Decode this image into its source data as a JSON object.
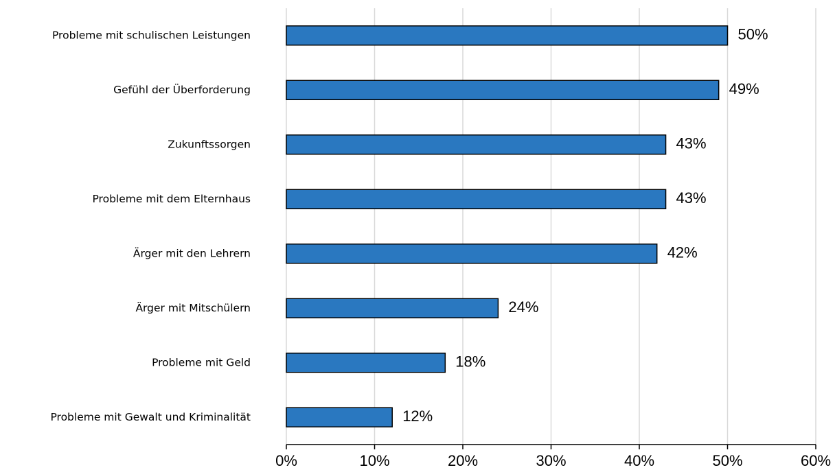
{
  "chart_data": {
    "type": "bar",
    "orientation": "horizontal",
    "categories": [
      "Probleme mit schulischen Leistungen",
      "Gefühl der Überforderung",
      "Zukunftssorgen",
      "Probleme mit dem Elternhaus",
      "Ärger mit den Lehrern",
      "Ärger mit Mitschülern",
      "Probleme mit Geld",
      "Probleme mit Gewalt und Kriminalität"
    ],
    "values": [
      50,
      49,
      43,
      43,
      42,
      24,
      18,
      12
    ],
    "value_labels": [
      "50%",
      "49%",
      "43%",
      "43%",
      "42%",
      "24%",
      "18%",
      "12%"
    ],
    "color": "#2a78c0",
    "xlim": [
      0,
      60
    ],
    "xticks": [
      {
        "value": 0,
        "label": "0%"
      },
      {
        "value": 10,
        "label": "10%"
      },
      {
        "value": 20,
        "label": "20%"
      },
      {
        "value": 30,
        "label": "30%"
      },
      {
        "value": 40,
        "label": "40%"
      },
      {
        "value": 50,
        "label": "50%"
      },
      {
        "value": 60,
        "label": "60%"
      }
    ],
    "grid": true
  }
}
